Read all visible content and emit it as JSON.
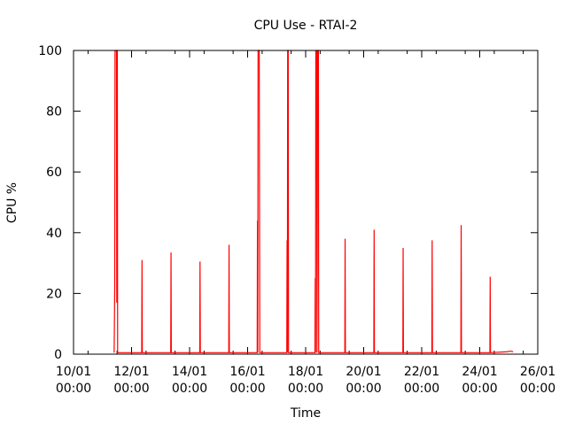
{
  "chart_data": {
    "type": "line",
    "title": "CPU Use - RTAI-2",
    "xlabel": "Time",
    "ylabel": "CPU %",
    "xlim": [
      "10/01 00:00",
      "26/01 00:00"
    ],
    "ylim": [
      0,
      100
    ],
    "y_ticks": [
      0,
      20,
      40,
      60,
      80,
      100
    ],
    "x_ticks": [
      {
        "day": 10,
        "line1": "10/01",
        "line2": "00:00"
      },
      {
        "day": 12,
        "line1": "12/01",
        "line2": "00:00"
      },
      {
        "day": 14,
        "line1": "14/01",
        "line2": "00:00"
      },
      {
        "day": 16,
        "line1": "16/01",
        "line2": "00:00"
      },
      {
        "day": 18,
        "line1": "18/01",
        "line2": "00:00"
      },
      {
        "day": 20,
        "line1": "20/01",
        "line2": "00:00"
      },
      {
        "day": 22,
        "line1": "22/01",
        "line2": "00:00"
      },
      {
        "day": 24,
        "line1": "24/01",
        "line2": "00:00"
      },
      {
        "day": 26,
        "line1": "26/01",
        "line2": "00:00"
      }
    ],
    "grid": false,
    "legend": "none",
    "line_color": "#ff0000",
    "series": [
      {
        "x": [
          11.4,
          11.42,
          11.43,
          11.44,
          11.45,
          11.46,
          11.47,
          11.48,
          11.49,
          11.5,
          11.51,
          11.52,
          11.53,
          11.54,
          12.35,
          12.36,
          12.37,
          13.35,
          13.36,
          13.37,
          14.35,
          14.36,
          14.37,
          15.35,
          15.36,
          15.37,
          16.33,
          16.34,
          16.35,
          16.36,
          16.37,
          16.38,
          16.39,
          16.4,
          16.42,
          16.43,
          17.35,
          17.36,
          17.37,
          17.38,
          17.39,
          17.4,
          17.41,
          17.42,
          18.32,
          18.33,
          18.34,
          18.35,
          18.36,
          18.37,
          18.38,
          18.39,
          18.4,
          18.41,
          18.42,
          18.43,
          18.44,
          18.45,
          18.46,
          19.35,
          19.36,
          19.37,
          20.35,
          20.36,
          20.37,
          21.35,
          21.36,
          21.37,
          22.35,
          22.36,
          22.37,
          23.35,
          23.36,
          23.37,
          24.35,
          24.36,
          24.37,
          24.95,
          25.05,
          25.15
        ],
        "y": [
          0.5,
          22,
          100,
          100,
          100,
          100,
          100,
          100,
          17,
          100,
          100,
          0.5,
          0.5,
          0.5,
          0.5,
          31,
          0.5,
          0.5,
          33.5,
          0.5,
          0.5,
          30.5,
          0.5,
          0.5,
          36,
          0.5,
          0.5,
          44,
          0.5,
          100,
          100,
          100,
          100,
          100,
          0.5,
          0.5,
          0.5,
          37.5,
          0.5,
          100,
          100,
          100,
          0.5,
          0.5,
          0.5,
          25,
          0.5,
          100,
          100,
          57,
          100,
          0.5,
          30.5,
          100,
          100,
          100,
          100,
          0.5,
          0.5,
          0.5,
          38,
          0.5,
          0.5,
          41,
          0.5,
          0.5,
          35,
          0.5,
          0.5,
          37.5,
          0.5,
          0.5,
          42.5,
          0.5,
          0.5,
          25.5,
          0.5,
          0.8,
          1.0,
          0.8
        ]
      }
    ]
  }
}
